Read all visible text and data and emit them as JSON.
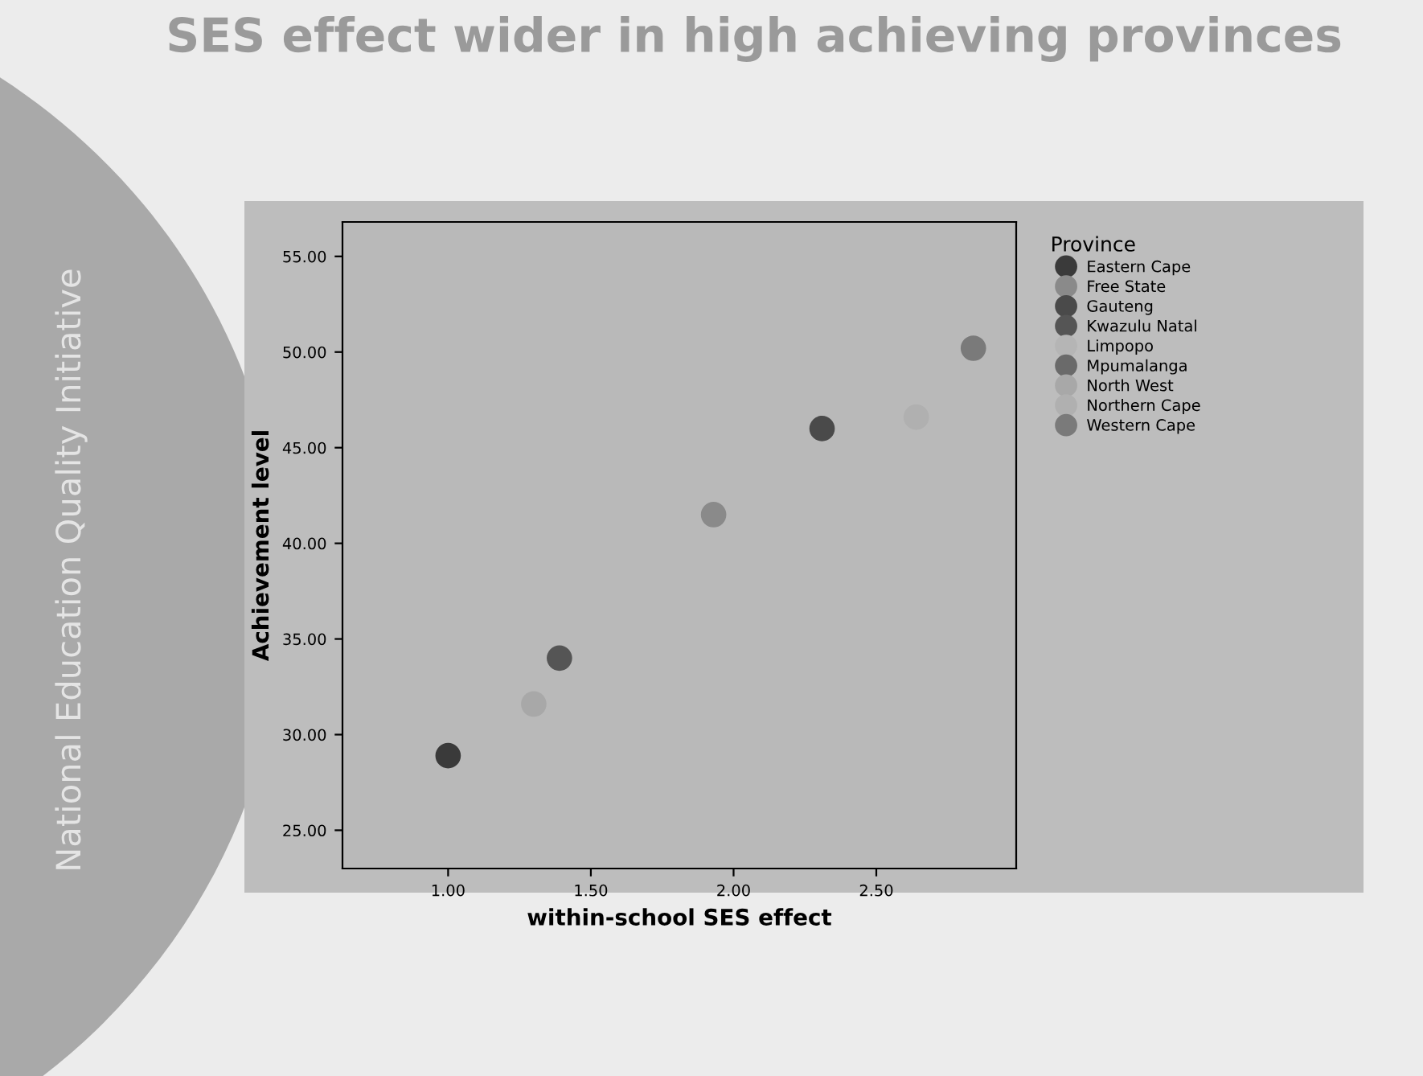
{
  "chart_data": {
    "type": "scatter",
    "title": "SES effect wider in high achieving provinces",
    "xlabel": "within-school SES effect",
    "ylabel": "Achievement level",
    "legend_title": "Province",
    "annotations": [
      "National Education Quality Initiative"
    ],
    "xlim": [
      0.63,
      2.99
    ],
    "ylim": [
      23.0,
      56.8
    ],
    "xticks": [
      {
        "value": 1.0,
        "label": "1.00"
      },
      {
        "value": 1.5,
        "label": "1.50"
      },
      {
        "value": 2.0,
        "label": "2.00"
      },
      {
        "value": 2.5,
        "label": "2.50"
      }
    ],
    "yticks": [
      {
        "value": 25,
        "label": "25.00"
      },
      {
        "value": 30,
        "label": "30.00"
      },
      {
        "value": 35,
        "label": "35.00"
      },
      {
        "value": 40,
        "label": "40.00"
      },
      {
        "value": 45,
        "label": "45.00"
      },
      {
        "value": 50,
        "label": "50.00"
      },
      {
        "value": 55,
        "label": "55.00"
      }
    ],
    "marker": "circle",
    "legend": "right",
    "grid": false,
    "series": [
      {
        "name": "Eastern Cape",
        "color": "#3a3a3a",
        "x": [
          1.0
        ],
        "values": [
          28.9
        ]
      },
      {
        "name": "Free State",
        "color": "#8a8a8a",
        "x": [
          1.93
        ],
        "values": [
          41.5
        ]
      },
      {
        "name": "Gauteng",
        "color": "#4a4a4a",
        "x": [
          2.31
        ],
        "values": [
          46.0
        ]
      },
      {
        "name": "Kwazulu Natal",
        "color": "#555555",
        "x": [
          1.39
        ],
        "values": [
          34.0
        ]
      },
      {
        "name": "Limpopo",
        "color": "#b5b5b5",
        "x": [
          null
        ],
        "values": [
          null
        ]
      },
      {
        "name": "Mpumalanga",
        "color": "#6a6a6a",
        "x": [
          null
        ],
        "values": [
          null
        ]
      },
      {
        "name": "North West",
        "color": "#a8a8a8",
        "x": [
          1.3
        ],
        "values": [
          31.6
        ]
      },
      {
        "name": "Northern Cape",
        "color": "#b0b0b0",
        "x": [
          2.64
        ],
        "values": [
          46.6
        ]
      },
      {
        "name": "Western Cape",
        "color": "#7a7a7a",
        "x": [
          2.84
        ],
        "values": [
          50.2
        ]
      }
    ]
  }
}
